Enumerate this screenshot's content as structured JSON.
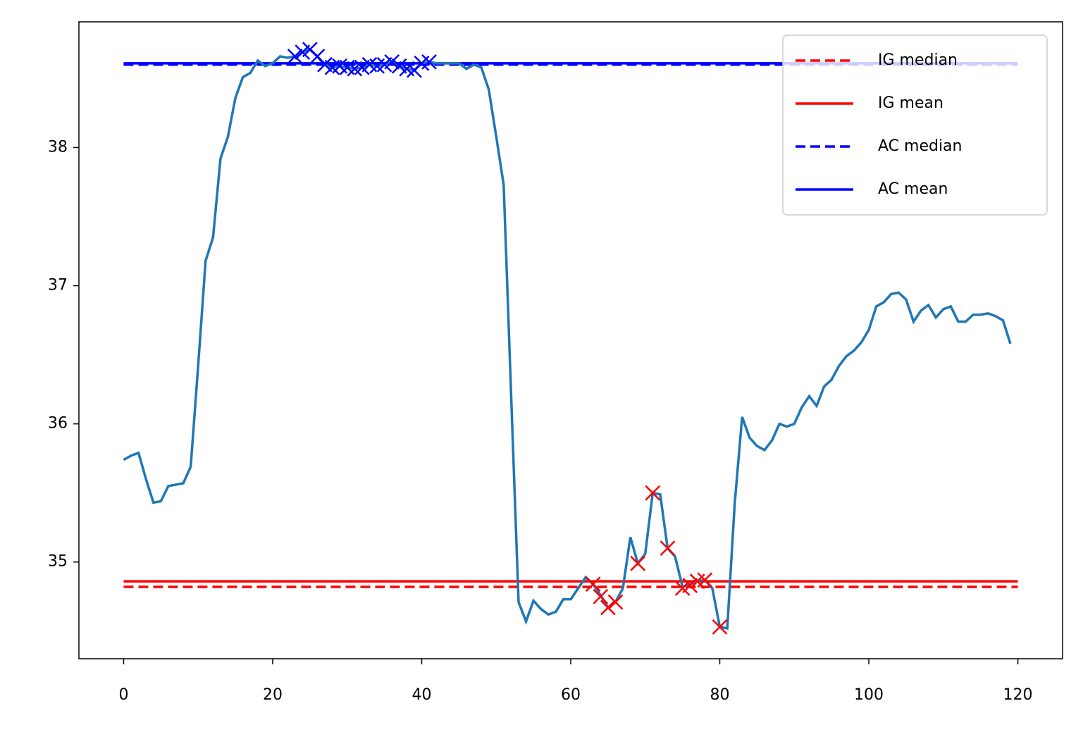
{
  "chart_data": {
    "type": "line",
    "series": [
      {
        "color": "#1f77b4",
        "values": [
          35.74,
          35.77,
          35.79,
          35.6,
          35.43,
          35.44,
          35.55,
          35.56,
          35.57,
          35.69,
          36.42,
          37.18,
          37.35,
          37.92,
          38.08,
          38.36,
          38.51,
          38.54,
          38.63,
          38.59,
          38.61,
          38.66,
          38.65,
          38.66,
          38.69,
          38.71,
          38.66,
          38.6,
          38.58,
          38.59,
          38.58,
          38.57,
          38.58,
          38.6,
          38.59,
          38.6,
          38.62,
          38.59,
          38.57,
          38.56,
          38.61,
          38.62,
          38.61,
          38.61,
          38.61,
          38.61,
          38.57,
          38.6,
          38.58,
          38.42,
          38.08,
          37.73,
          36.21,
          34.71,
          34.57,
          34.72,
          34.66,
          34.62,
          34.64,
          34.73,
          34.73,
          34.81,
          34.89,
          34.84,
          34.76,
          34.67,
          34.71,
          34.81,
          35.18,
          34.99,
          35.06,
          35.5,
          35.49,
          35.1,
          35.04,
          34.82,
          34.84,
          34.86,
          34.87,
          34.81,
          34.53,
          34.52,
          35.42,
          36.05,
          35.9,
          35.84,
          35.81,
          35.88,
          36.0,
          35.98,
          36.0,
          36.12,
          36.2,
          36.13,
          36.27,
          36.32,
          36.42,
          36.49,
          36.53,
          36.59,
          36.68,
          36.85,
          36.88,
          36.94,
          36.95,
          36.9,
          36.74,
          36.82,
          36.86,
          36.77,
          36.83,
          36.85,
          36.74,
          36.74,
          36.79,
          36.79,
          36.8,
          36.78,
          36.75,
          36.58
        ]
      }
    ],
    "markers": [
      {
        "color": "#ff0000",
        "x": [
          63,
          64,
          65,
          66,
          69,
          71,
          73,
          75,
          76,
          77,
          78,
          80
        ],
        "values": [
          34.84,
          34.75,
          34.67,
          34.71,
          34.99,
          35.5,
          35.1,
          34.81,
          34.83,
          34.86,
          34.87,
          34.53
        ]
      },
      {
        "color": "#0000ff",
        "x": [
          23,
          24,
          25,
          26,
          27,
          28,
          29,
          30,
          31,
          32,
          33,
          34,
          35,
          36,
          37,
          38,
          39,
          40,
          41
        ],
        "values": [
          38.66,
          38.69,
          38.71,
          38.66,
          38.6,
          38.58,
          38.59,
          38.58,
          38.57,
          38.58,
          38.6,
          38.59,
          38.6,
          38.62,
          38.59,
          38.57,
          38.56,
          38.61,
          38.62
        ]
      }
    ],
    "hlines": [
      {
        "name": "IG median",
        "color": "#ff0000",
        "style": "dashed",
        "value": 34.82
      },
      {
        "name": "IG mean",
        "color": "#ff0000",
        "style": "solid",
        "value": 34.86
      },
      {
        "name": "AC median",
        "color": "#0000ff",
        "style": "dashed",
        "value": 38.6
      },
      {
        "name": "AC mean",
        "color": "#0000ff",
        "style": "solid",
        "value": 38.61
      }
    ],
    "hline_span": [
      0,
      120
    ],
    "xlim": [
      -6,
      126
    ],
    "ylim": [
      34.3,
      38.91
    ],
    "xticks": [
      0,
      20,
      40,
      60,
      80,
      100,
      120
    ],
    "yticks": [
      35,
      36,
      37,
      38
    ],
    "legend": "upper right"
  }
}
